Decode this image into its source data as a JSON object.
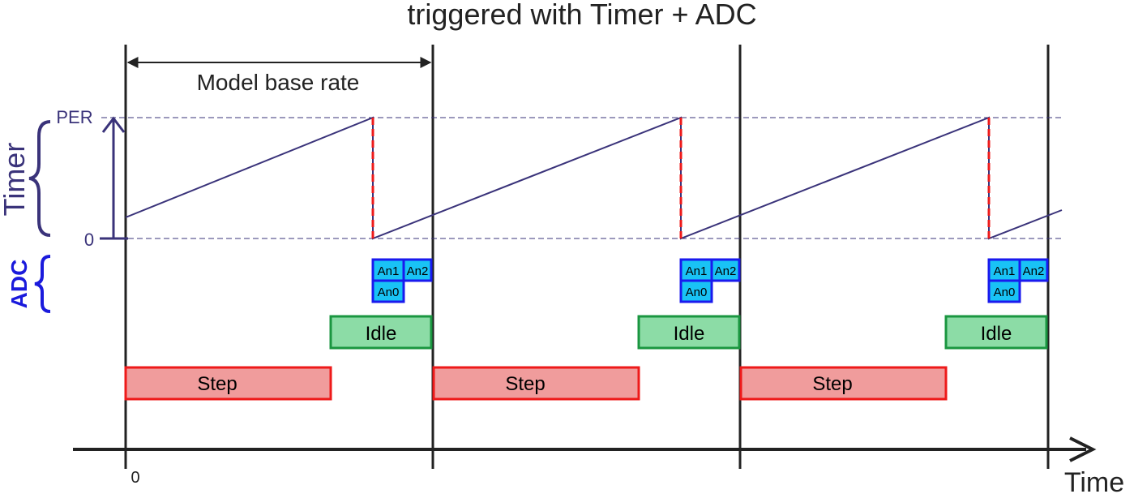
{
  "title": "triggered with Timer + ADC",
  "model_base_rate_label": "Model base rate",
  "timer_label": "Timer",
  "adc_label": "ADC",
  "per_label": "PER",
  "zero_tick_label": "0",
  "time_origin_label": "0",
  "time_axis_label": "Time",
  "periods": [
    {
      "step_label": "Step",
      "idle_label": "Idle",
      "adc_samples": [
        "An1",
        "An2",
        "An0"
      ]
    },
    {
      "step_label": "Step",
      "idle_label": "Idle",
      "adc_samples": [
        "An1",
        "An2",
        "An0"
      ]
    },
    {
      "step_label": "Step",
      "idle_label": "Idle",
      "adc_samples": [
        "An1",
        "An2",
        "An0"
      ]
    }
  ],
  "colors": {
    "timer": "#3a337a",
    "adc_label": "#1a1adc",
    "adc_box_fill": "#19c3f5",
    "adc_box_border": "#1a1aee",
    "idle_fill": "#8cdca6",
    "idle_border": "#1a9640",
    "step_fill": "#f09c9c",
    "step_border": "#ee1a1a",
    "reset_line": "#ee1a1a"
  }
}
